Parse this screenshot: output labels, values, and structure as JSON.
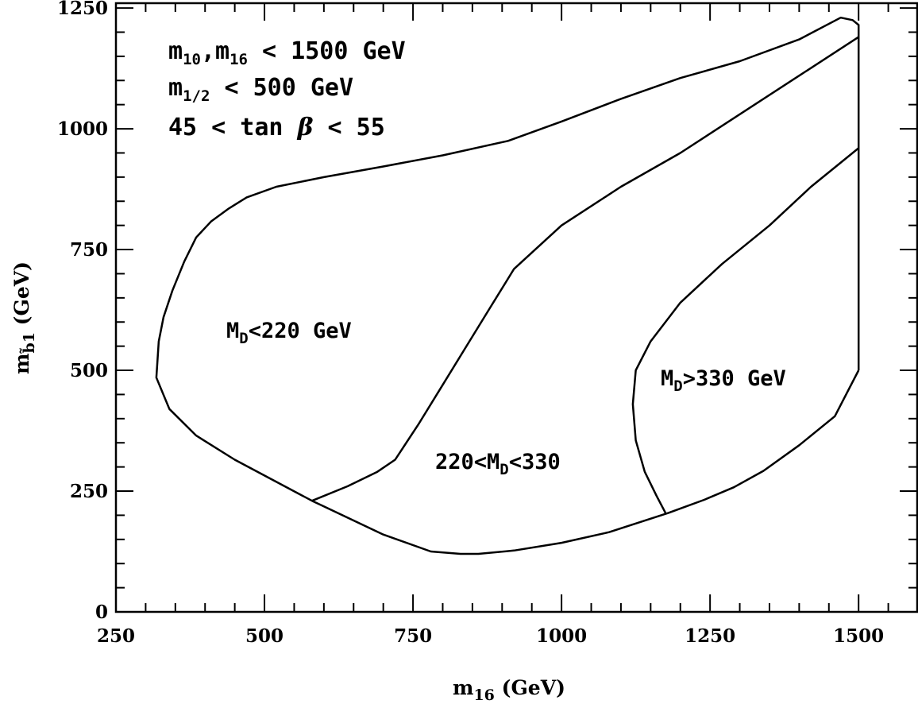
{
  "chart_data": {
    "type": "line",
    "xlabel": {
      "main": "m",
      "sub": "16",
      "units": "(GeV)"
    },
    "ylabel": {
      "main": "m",
      "sub": "b̃1",
      "units": "(GeV)"
    },
    "xlim": [
      250,
      1600
    ],
    "ylim": [
      0,
      1260
    ],
    "xticks": [
      250,
      500,
      750,
      1000,
      1250,
      1500
    ],
    "yticks": [
      0,
      250,
      500,
      750,
      1000,
      1250
    ],
    "grid": false,
    "annotations": {
      "line1": {
        "a": "m",
        "a_sub": "10",
        "b": ",m",
        "b_sub": "16",
        "c": " < 1500 GeV"
      },
      "line2": {
        "a": "m",
        "a_sub": "1/2",
        "b": " < 500 GeV"
      },
      "line3": {
        "a": "45 < tan ",
        "beta": "β",
        "b": " < 55"
      }
    },
    "region_labels": {
      "low": {
        "a": "M",
        "sub": "D",
        "b": "<220 GeV"
      },
      "mid": {
        "a": "220<M",
        "sub": "D",
        "b": "<330"
      },
      "high": {
        "a": "M",
        "sub": "D",
        "b": ">330 GeV"
      }
    },
    "series": [
      {
        "x": [
          1500,
          1500,
          1490,
          1470,
          1400,
          1300,
          1200,
          1100,
          1000,
          910,
          800,
          700,
          600,
          520,
          470,
          440,
          410,
          385,
          365,
          345,
          330,
          322,
          318,
          340,
          385,
          450,
          580,
          700,
          780,
          830,
          860,
          920,
          1000,
          1080,
          1180,
          1240,
          1290,
          1340,
          1400,
          1460,
          1500
        ],
        "y": [
          500,
          1215,
          1225,
          1230,
          1185,
          1140,
          1105,
          1062,
          1015,
          975,
          945,
          922,
          900,
          880,
          858,
          835,
          808,
          775,
          725,
          665,
          610,
          560,
          485,
          420,
          365,
          315,
          230,
          160,
          125,
          120,
          120,
          127,
          143,
          165,
          205,
          232,
          258,
          292,
          345,
          405,
          500
        ]
      },
      {
        "x": [
          580,
          640,
          690,
          720,
          760,
          800,
          840,
          880,
          920,
          1000,
          1100,
          1200,
          1300,
          1400,
          1500
        ],
        "y": [
          230,
          260,
          290,
          315,
          390,
          470,
          550,
          630,
          710,
          800,
          880,
          950,
          1030,
          1110,
          1190
        ]
      },
      {
        "x": [
          1175,
          1160,
          1140,
          1125,
          1120,
          1125,
          1150,
          1200,
          1270,
          1350,
          1420,
          1500
        ],
        "y": [
          205,
          240,
          290,
          355,
          430,
          500,
          560,
          640,
          720,
          800,
          880,
          960
        ]
      }
    ]
  }
}
